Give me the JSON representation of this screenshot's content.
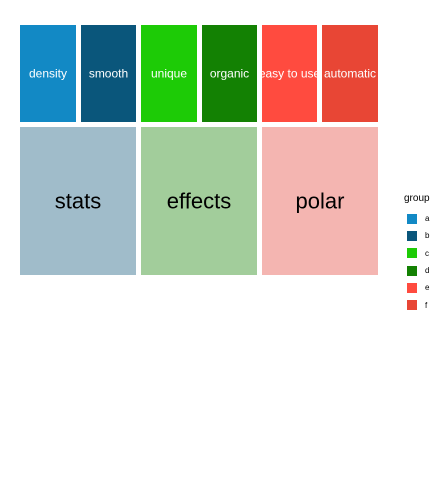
{
  "chart_data": {
    "type": "treemap",
    "title": "",
    "subgroups": [
      {
        "label": "density",
        "group": "a",
        "color": "#1289C5"
      },
      {
        "label": "smooth",
        "group": "b",
        "color": "#0A567B"
      },
      {
        "label": "unique",
        "group": "c",
        "color": "#1DCB06"
      },
      {
        "label": "organic",
        "group": "d",
        "color": "#138103"
      },
      {
        "label": "easy to use",
        "group": "e",
        "color": "#FF4B3F"
      },
      {
        "label": "automatic",
        "group": "f",
        "color": "#E84635"
      }
    ],
    "groups": [
      {
        "label": "stats",
        "color": "#A0BCCA"
      },
      {
        "label": "effects",
        "color": "#A2CD9B"
      },
      {
        "label": "polar",
        "color": "#F4B5B1"
      }
    ],
    "legend": {
      "title": "group",
      "placement": "right",
      "entries": [
        {
          "label": "a",
          "color": "#1289C5"
        },
        {
          "label": "b",
          "color": "#0A567B"
        },
        {
          "label": "c",
          "color": "#1DCB06"
        },
        {
          "label": "d",
          "color": "#138103"
        },
        {
          "label": "e",
          "color": "#FF4B3F"
        },
        {
          "label": "f",
          "color": "#E84635"
        }
      ]
    }
  }
}
